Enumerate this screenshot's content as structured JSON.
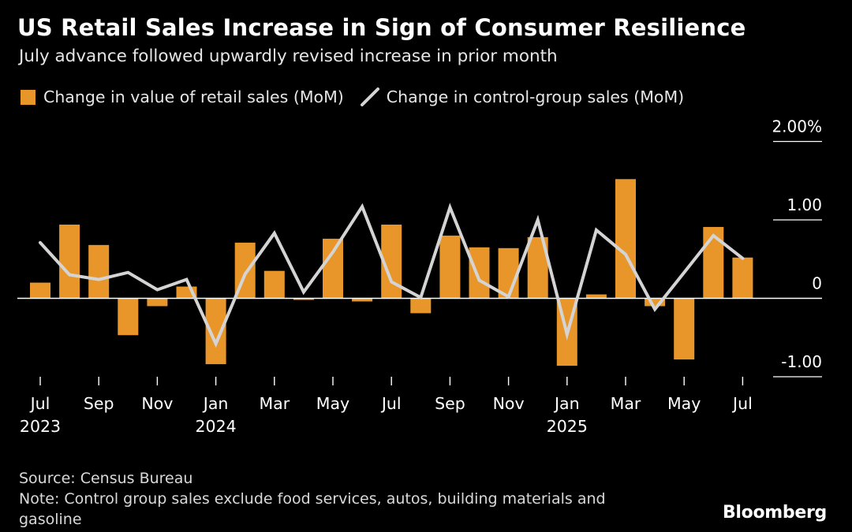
{
  "title": "US Retail Sales Increase in Sign of Consumer Resilience",
  "subtitle": "July advance followed upwardly revised increase in prior month",
  "legend": {
    "bar_label": "Change in value of retail sales (MoM)",
    "line_label": "Change in control-group sales (MoM)"
  },
  "footer": {
    "source": "Source: Census Bureau",
    "note": "Note: Control group sales exclude food services, autos, building materials and gasoline"
  },
  "brand": "Bloomberg",
  "colors": {
    "background": "#000000",
    "bar": "#e8962a",
    "line": "#d4d4d4",
    "text": "#ffffff"
  },
  "chart_data": {
    "type": "bar",
    "x": [
      "2023-07",
      "2023-08",
      "2023-09",
      "2023-10",
      "2023-11",
      "2023-12",
      "2024-01",
      "2024-02",
      "2024-03",
      "2024-04",
      "2024-05",
      "2024-06",
      "2024-07",
      "2024-08",
      "2024-09",
      "2024-10",
      "2024-11",
      "2024-12",
      "2025-01",
      "2025-02",
      "2025-03",
      "2025-04",
      "2025-05",
      "2025-06",
      "2025-07"
    ],
    "series": [
      {
        "name": "Change in value of retail sales (MoM)",
        "type": "bar",
        "values": [
          0.2,
          0.94,
          0.68,
          -0.47,
          -0.1,
          0.15,
          -0.84,
          0.71,
          0.35,
          -0.02,
          0.76,
          -0.04,
          0.94,
          -0.19,
          0.8,
          0.65,
          0.64,
          0.78,
          -0.86,
          0.05,
          1.52,
          -0.1,
          -0.78,
          0.91,
          0.52
        ]
      },
      {
        "name": "Change in control-group sales (MoM)",
        "type": "line",
        "values": [
          0.71,
          0.3,
          0.24,
          0.33,
          0.11,
          0.24,
          -0.58,
          0.31,
          0.83,
          0.08,
          0.59,
          1.17,
          0.21,
          0.01,
          1.16,
          0.23,
          0.02,
          1.0,
          -0.46,
          0.87,
          0.56,
          -0.14,
          0.33,
          0.8,
          0.51
        ]
      }
    ],
    "x_ticks": [
      {
        "index": 0,
        "label": "Jul",
        "year": "2023"
      },
      {
        "index": 2,
        "label": "Sep",
        "year": ""
      },
      {
        "index": 4,
        "label": "Nov",
        "year": ""
      },
      {
        "index": 6,
        "label": "Jan",
        "year": "2024"
      },
      {
        "index": 8,
        "label": "Mar",
        "year": ""
      },
      {
        "index": 10,
        "label": "May",
        "year": ""
      },
      {
        "index": 12,
        "label": "Jul",
        "year": ""
      },
      {
        "index": 14,
        "label": "Sep",
        "year": ""
      },
      {
        "index": 16,
        "label": "Nov",
        "year": ""
      },
      {
        "index": 18,
        "label": "Jan",
        "year": "2025"
      },
      {
        "index": 20,
        "label": "Mar",
        "year": ""
      },
      {
        "index": 22,
        "label": "May",
        "year": ""
      },
      {
        "index": 24,
        "label": "Jul",
        "year": ""
      }
    ],
    "y_ticks": [
      {
        "value": 2,
        "label": "2.00%"
      },
      {
        "value": 1,
        "label": "1.00"
      },
      {
        "value": 0,
        "label": "0"
      },
      {
        "value": -1,
        "label": "-1.00"
      }
    ],
    "ylim": [
      -1,
      2
    ],
    "grid": false,
    "legend_position": "top-left"
  }
}
